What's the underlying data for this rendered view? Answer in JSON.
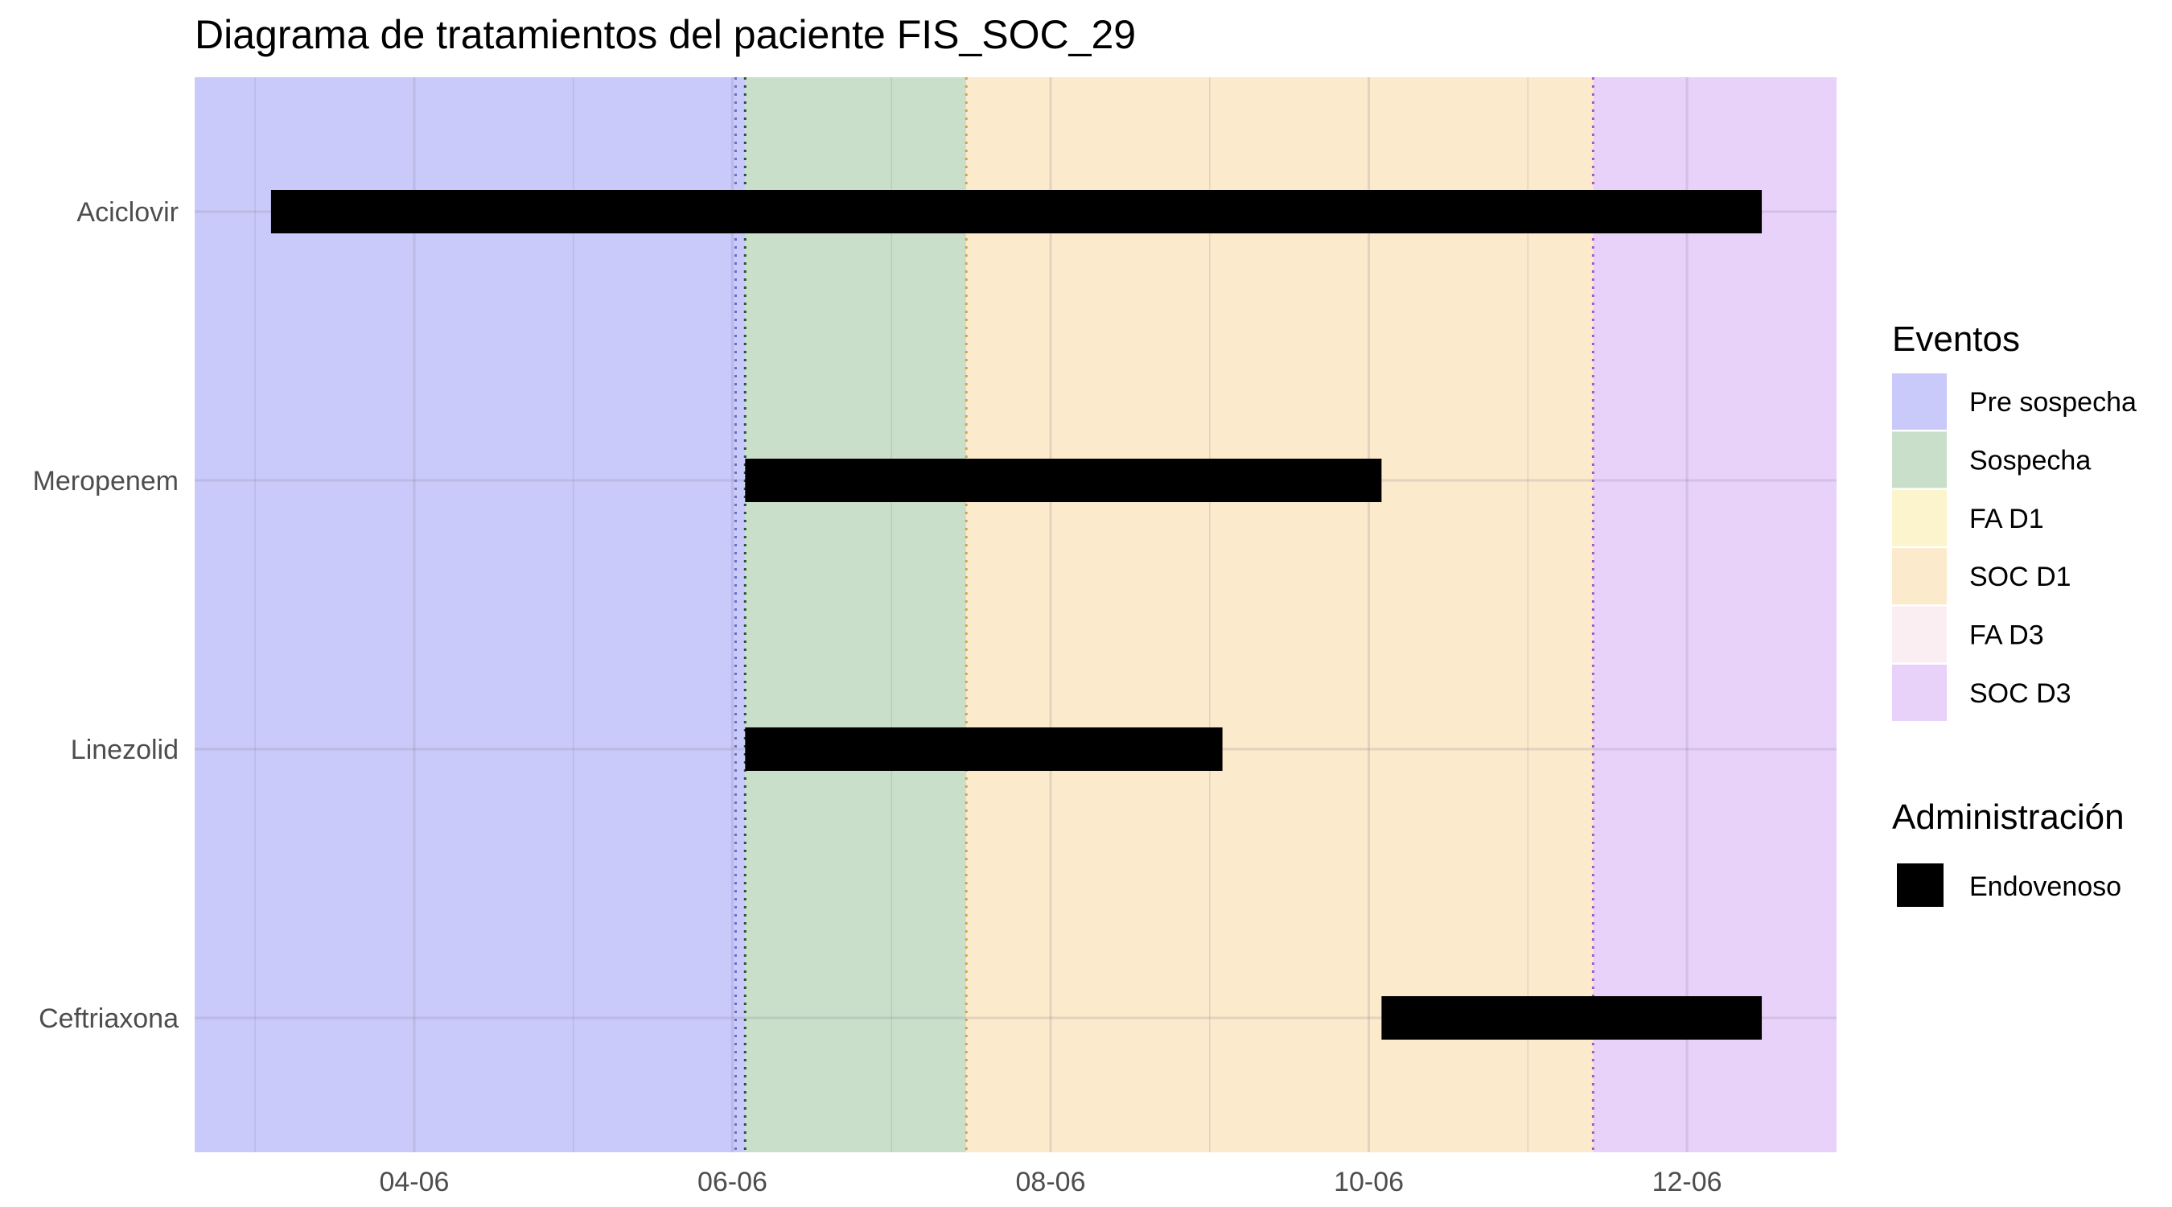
{
  "chart_data": {
    "type": "timeline",
    "title": "Diagrama de tratamientos del paciente FIS_SOC_29",
    "xlabel": "",
    "ylabel": "",
    "x_unit": "day of June",
    "xlim": [
      2.62,
      12.94
    ],
    "x_ticks": [
      {
        "value": 4,
        "label": "04-06"
      },
      {
        "value": 6,
        "label": "06-06"
      },
      {
        "value": 8,
        "label": "08-06"
      },
      {
        "value": 10,
        "label": "10-06"
      },
      {
        "value": 12,
        "label": "12-06"
      }
    ],
    "categories": [
      "Aciclovir",
      "Meropenem",
      "Linezolid",
      "Ceftriaxona"
    ],
    "phases": [
      {
        "name": "Pre sospecha",
        "start": 2.62,
        "end": 6.08,
        "color": "#c9c9fa"
      },
      {
        "name": "Sospecha",
        "start": 6.08,
        "end": 7.47,
        "color": "#c9dfca"
      },
      {
        "name": "SOC D1",
        "start": 7.47,
        "end": 11.41,
        "color": "#fbeacb"
      },
      {
        "name": "SOC D3",
        "start": 11.41,
        "end": 12.94,
        "color": "#e9d2f9"
      }
    ],
    "event_lines": [
      {
        "x": 6.02,
        "color": "#6b6bd0"
      },
      {
        "x": 6.08,
        "color": "#1f5a2a"
      },
      {
        "x": 7.47,
        "color": "#d4a340"
      },
      {
        "x": 11.41,
        "color": "#a455d6"
      }
    ],
    "treatments": [
      {
        "name": "Aciclovir",
        "start": 3.1,
        "end": 12.47,
        "route": "Endovenoso"
      },
      {
        "name": "Meropenem",
        "start": 6.08,
        "end": 10.08,
        "route": "Endovenoso"
      },
      {
        "name": "Linezolid",
        "start": 6.08,
        "end": 9.08,
        "route": "Endovenoso"
      },
      {
        "name": "Ceftriaxona",
        "start": 10.08,
        "end": 12.47,
        "route": "Endovenoso"
      }
    ],
    "legend": [
      {
        "title": "Eventos",
        "items": [
          {
            "label": "Pre sospecha",
            "color": "#c9c9fa"
          },
          {
            "label": "Sospecha",
            "color": "#c9dfca"
          },
          {
            "label": "FA D1",
            "color": "#fbf4cc"
          },
          {
            "label": "SOC D1",
            "color": "#fbeacb"
          },
          {
            "label": "FA D3",
            "color": "#fbeef2"
          },
          {
            "label": "SOC D3",
            "color": "#e9d2f9"
          }
        ]
      },
      {
        "title": "Administración",
        "items": [
          {
            "label": "Endovenoso",
            "color": "#000000"
          }
        ]
      }
    ],
    "legend_position": "right",
    "grid": true
  }
}
